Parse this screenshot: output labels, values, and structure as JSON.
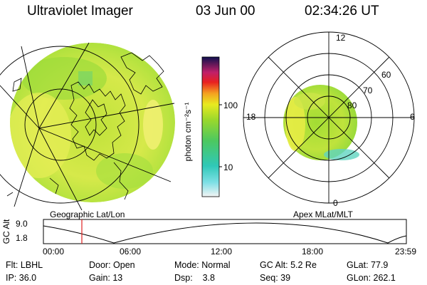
{
  "header": {
    "instrument": "Ultraviolet Imager",
    "date": "03 Jun 00",
    "time": "02:34:26 UT"
  },
  "colorbar": {
    "unit_label": "photon cm⁻²s⁻¹",
    "ticks": [
      "100",
      "10"
    ]
  },
  "geographic_panel": {
    "caption": "Geographic Lat/Lon"
  },
  "polar_panel": {
    "caption": "Apex MLat/MLT",
    "mlt_labels": {
      "top": "12",
      "left": "18",
      "right": "6",
      "bottom": "0"
    },
    "mlat_labels": [
      "60",
      "70",
      "80"
    ]
  },
  "altitude_plot": {
    "ylabel": "GC Alt",
    "y_ticks": [
      "9.0",
      "1.8"
    ],
    "x_ticks": [
      "00:00",
      "06:00",
      "12:00",
      "18:00",
      "23:59"
    ],
    "marker_time": "02:34:26"
  },
  "info_rows": [
    [
      "Flt: LBHL",
      "Door: Open",
      "Mode: Normal",
      "GC Alt: 5.2 Re",
      "GLat: 77.9"
    ],
    [
      "IP: 36.0",
      "Gain: 13",
      "Dsp:    3.8",
      "Seq: 39",
      "GLon: 262.1"
    ]
  ],
  "colors": {
    "aurora_green": "#84d61c",
    "aurora_yellow": "#e8ef3a",
    "marker": "#e02020"
  }
}
